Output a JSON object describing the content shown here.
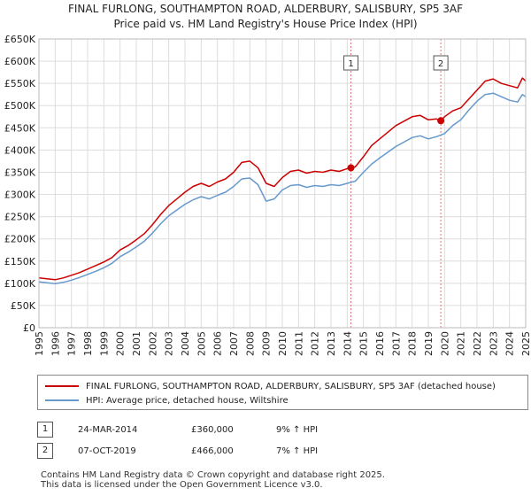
{
  "title": {
    "line1": "FINAL FURLONG, SOUTHAMPTON ROAD, ALDERBURY, SALISBURY, SP5 3AF",
    "line2": "Price paid vs. HM Land Registry's House Price Index (HPI)"
  },
  "colors": {
    "property": "#cc0000",
    "hpi": "#6699cc",
    "vline": "#dd7777",
    "grid": "#dddddd"
  },
  "chart_data": {
    "type": "line",
    "title": "Price paid vs. HM Land Registry's House Price Index (HPI)",
    "xlabel": "",
    "ylabel": "",
    "xlim": [
      1995,
      2025
    ],
    "ylim": [
      0,
      650000
    ],
    "y_ticks": [
      {
        "value": 0,
        "label": "£0"
      },
      {
        "value": 50000,
        "label": "£50K"
      },
      {
        "value": 100000,
        "label": "£100K"
      },
      {
        "value": 150000,
        "label": "£150K"
      },
      {
        "value": 200000,
        "label": "£200K"
      },
      {
        "value": 250000,
        "label": "£250K"
      },
      {
        "value": 300000,
        "label": "£300K"
      },
      {
        "value": 350000,
        "label": "£350K"
      },
      {
        "value": 400000,
        "label": "£400K"
      },
      {
        "value": 450000,
        "label": "£450K"
      },
      {
        "value": 500000,
        "label": "£500K"
      },
      {
        "value": 550000,
        "label": "£550K"
      },
      {
        "value": 600000,
        "label": "£600K"
      },
      {
        "value": 650000,
        "label": "£650K"
      }
    ],
    "x_ticks": [
      "1995",
      "1996",
      "1997",
      "1998",
      "1999",
      "2000",
      "2001",
      "2002",
      "2003",
      "2004",
      "2005",
      "2006",
      "2007",
      "2008",
      "2009",
      "2010",
      "2011",
      "2012",
      "2013",
      "2014",
      "2015",
      "2016",
      "2017",
      "2018",
      "2019",
      "2020",
      "2021",
      "2022",
      "2023",
      "2024",
      "2025"
    ],
    "grid": true,
    "series": [
      {
        "name": "FINAL FURLONG, SOUTHAMPTON ROAD, ALDERBURY, SALISBURY, SP5 3AF (detached house)",
        "color": "#cc0000",
        "x": [
          1995,
          1995.5,
          1996,
          1996.5,
          1997,
          1997.5,
          1998,
          1998.5,
          1999,
          1999.5,
          2000,
          2000.5,
          2001,
          2001.5,
          2002,
          2002.5,
          2003,
          2003.5,
          2004,
          2004.5,
          2005,
          2005.5,
          2006,
          2006.5,
          2007,
          2007.5,
          2008,
          2008.5,
          2009,
          2009.5,
          2010,
          2010.5,
          2011,
          2011.5,
          2012,
          2012.5,
          2013,
          2013.5,
          2014,
          2014.23,
          2014.5,
          2015,
          2015.5,
          2016,
          2016.5,
          2017,
          2017.5,
          2018,
          2018.5,
          2019,
          2019.5,
          2019.77,
          2020,
          2020.5,
          2021,
          2021.5,
          2022,
          2022.5,
          2023,
          2023.5,
          2024,
          2024.5,
          2024.8,
          2025
        ],
        "y": [
          112000,
          110000,
          108000,
          112000,
          118000,
          124000,
          132000,
          140000,
          148000,
          158000,
          175000,
          185000,
          198000,
          212000,
          232000,
          255000,
          275000,
          290000,
          305000,
          318000,
          325000,
          318000,
          328000,
          335000,
          350000,
          372000,
          375000,
          360000,
          325000,
          318000,
          338000,
          352000,
          355000,
          348000,
          352000,
          350000,
          355000,
          352000,
          358000,
          360000,
          362000,
          385000,
          410000,
          425000,
          440000,
          455000,
          465000,
          475000,
          478000,
          468000,
          470000,
          466000,
          475000,
          488000,
          495000,
          515000,
          535000,
          555000,
          560000,
          550000,
          545000,
          540000,
          562000,
          555000
        ]
      },
      {
        "name": "HPI: Average price, detached house, Wiltshire",
        "color": "#6699cc",
        "x": [
          1995,
          1995.5,
          1996,
          1996.5,
          1997,
          1997.5,
          1998,
          1998.5,
          1999,
          1999.5,
          2000,
          2000.5,
          2001,
          2001.5,
          2002,
          2002.5,
          2003,
          2003.5,
          2004,
          2004.5,
          2005,
          2005.5,
          2006,
          2006.5,
          2007,
          2007.5,
          2008,
          2008.5,
          2009,
          2009.5,
          2010,
          2010.5,
          2011,
          2011.5,
          2012,
          2012.5,
          2013,
          2013.5,
          2014,
          2014.5,
          2015,
          2015.5,
          2016,
          2016.5,
          2017,
          2017.5,
          2018,
          2018.5,
          2019,
          2019.5,
          2020,
          2020.5,
          2021,
          2021.5,
          2022,
          2022.5,
          2023,
          2023.5,
          2024,
          2024.5,
          2024.8,
          2025
        ],
        "y": [
          103000,
          101000,
          99000,
          102000,
          107000,
          113000,
          120000,
          127000,
          135000,
          145000,
          160000,
          170000,
          182000,
          195000,
          213000,
          234000,
          252000,
          265000,
          278000,
          288000,
          295000,
          290000,
          298000,
          305000,
          318000,
          335000,
          337000,
          322000,
          285000,
          290000,
          310000,
          320000,
          322000,
          316000,
          320000,
          318000,
          322000,
          320000,
          325000,
          330000,
          350000,
          368000,
          382000,
          395000,
          408000,
          418000,
          428000,
          432000,
          425000,
          430000,
          437000,
          455000,
          468000,
          490000,
          510000,
          525000,
          528000,
          520000,
          512000,
          508000,
          525000,
          520000
        ]
      }
    ],
    "annotations": [
      {
        "id": "1",
        "x": 2014.23,
        "y": 360000
      },
      {
        "id": "2",
        "x": 2019.77,
        "y": 466000
      }
    ]
  },
  "legend": {
    "property": "FINAL FURLONG, SOUTHAMPTON ROAD, ALDERBURY, SALISBURY, SP5 3AF (detached house)",
    "hpi": "HPI: Average price, detached house, Wiltshire"
  },
  "sales": [
    {
      "id": "1",
      "date": "24-MAR-2014",
      "price": "£360,000",
      "change": "9% ↑ HPI"
    },
    {
      "id": "2",
      "date": "07-OCT-2019",
      "price": "£466,000",
      "change": "7% ↑ HPI"
    }
  ],
  "footer": {
    "line1": "Contains HM Land Registry data © Crown copyright and database right 2025.",
    "line2": "This data is licensed under the Open Government Licence v3.0."
  }
}
